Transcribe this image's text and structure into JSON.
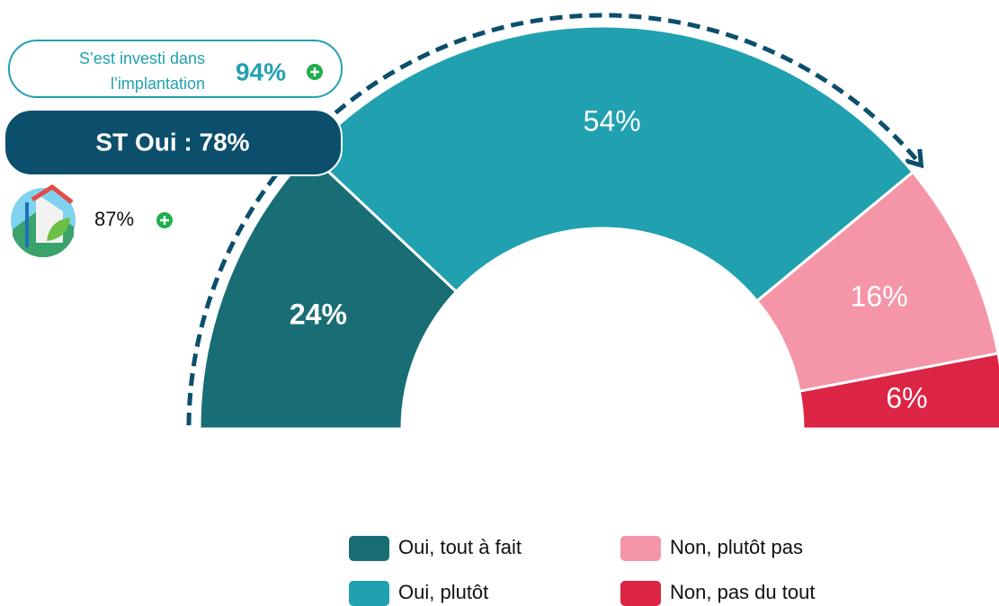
{
  "chart_data": {
    "type": "pie",
    "categories": [
      "Oui, tout à fait",
      "Oui, plutôt",
      "Non, plutôt pas",
      "Non, pas du tout"
    ],
    "values": [
      24,
      54,
      16,
      6
    ],
    "value_labels": [
      "24%",
      "54%",
      "16%",
      "6%"
    ],
    "colors": [
      "#186e74",
      "#21a0b0",
      "#f595a8",
      "#dc2444"
    ],
    "annotations": {
      "box_lines": [
        "S’est investi dans",
        "l’implantation"
      ],
      "box_value": "94%",
      "total": "ST Oui : 78%",
      "icon_value": "87%"
    }
  }
}
